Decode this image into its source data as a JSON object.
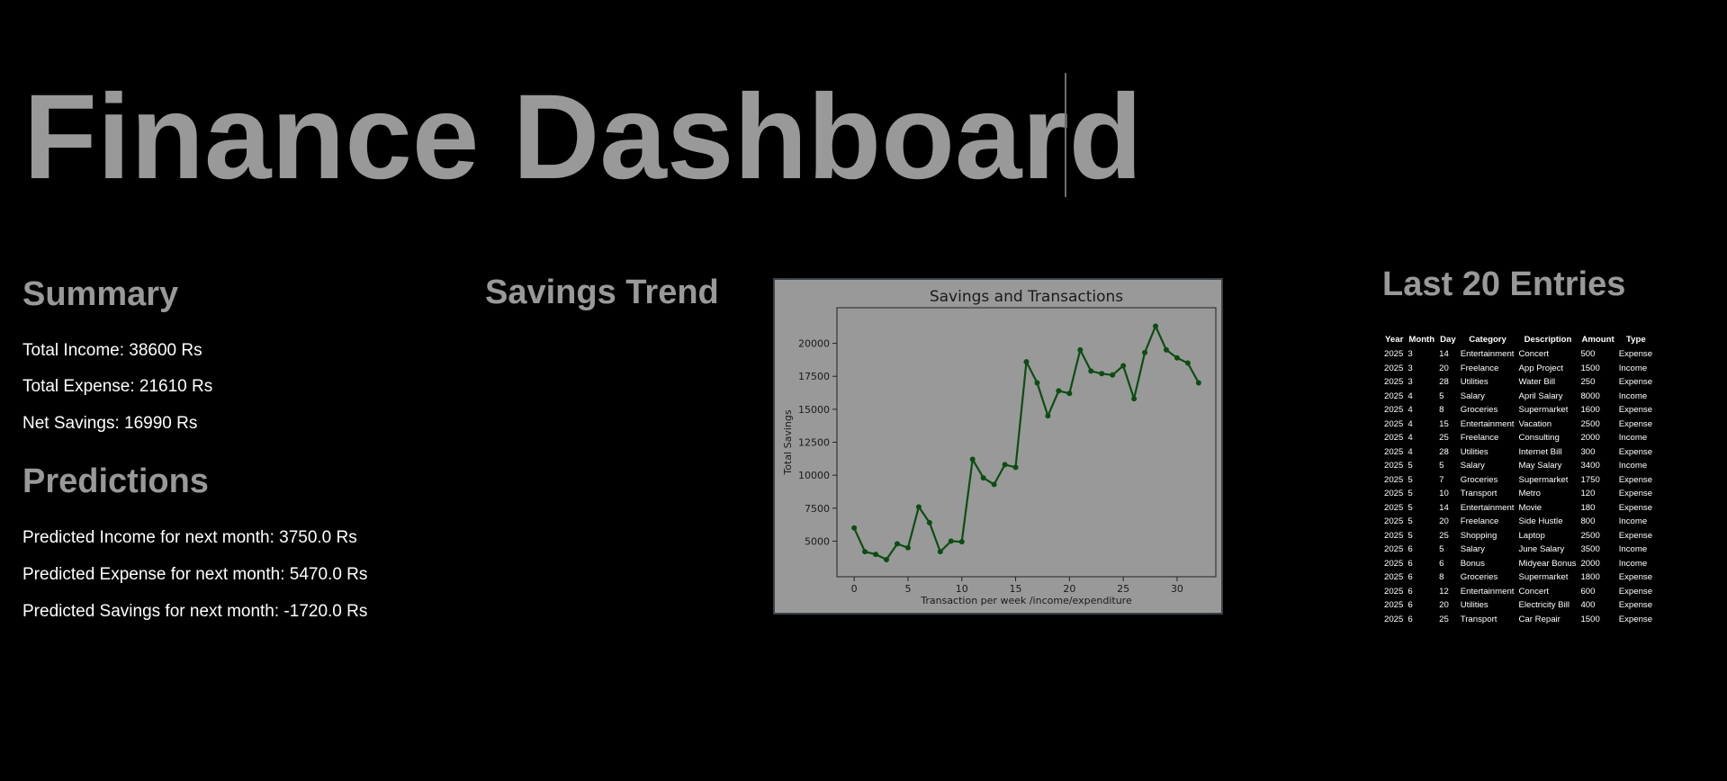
{
  "page": {
    "title": "Finance Dashboard"
  },
  "summary": {
    "heading": "Summary",
    "total_income": "Total Income: 38600 Rs",
    "total_expense": "Total Expense: 21610 Rs",
    "net_savings": "Net Savings: 16990 Rs"
  },
  "predictions": {
    "heading": "Predictions",
    "income": "Predicted Income for next month: 3750.0 Rs",
    "expense": "Predicted Expense for next month: 5470.0 Rs",
    "savings": "Predicted Savings for next month: -1720.0 Rs"
  },
  "savings_trend": {
    "heading": "Savings Trend"
  },
  "colors": {
    "page_background": "#000000",
    "heading_text": "#999999",
    "body_text": "#ffffff",
    "chart_background": "#999999",
    "line_color": "#0c4d12"
  },
  "chart_data": {
    "type": "line",
    "title": "Savings and Transactions",
    "xlabel": "Transaction per week /income/expenditure",
    "ylabel": "Total Savings",
    "xlim": [
      -1.6,
      33.6
    ],
    "ylim": [
      2300,
      22700
    ],
    "xticks": [
      0,
      5,
      10,
      15,
      20,
      25,
      30
    ],
    "yticks": [
      5000,
      7500,
      10000,
      12500,
      15000,
      17500,
      20000
    ],
    "grid": false,
    "markers": true,
    "series": [
      {
        "x": [
          0,
          1,
          2,
          3,
          4,
          5,
          6,
          7,
          8,
          9,
          10,
          11,
          12,
          13,
          14,
          15,
          16,
          17,
          18,
          19,
          20,
          21,
          22,
          23,
          24,
          25,
          26,
          27,
          28,
          29,
          30,
          31,
          32
        ],
        "values": [
          6000,
          4200,
          4000,
          3600,
          4800,
          4500,
          7600,
          6400,
          4200,
          5000,
          4950,
          11200,
          9800,
          9300,
          10800,
          10600,
          18600,
          17000,
          14500,
          16400,
          16200,
          19500,
          17900,
          17700,
          17600,
          18300,
          15800,
          19300,
          21300,
          19500,
          18900,
          18500,
          17000
        ]
      }
    ]
  },
  "entries": {
    "heading": "Last 20 Entries",
    "columns": [
      "Year",
      "Month",
      "Day",
      "Category",
      "Description",
      "Amount",
      "Type"
    ],
    "rows": [
      [
        "2025",
        "3",
        "14",
        "Entertainment",
        "Concert",
        "500",
        "Expense"
      ],
      [
        "2025",
        "3",
        "20",
        "Freelance",
        "App Project",
        "1500",
        "Income"
      ],
      [
        "2025",
        "3",
        "28",
        "Utilities",
        "Water Bill",
        "250",
        "Expense"
      ],
      [
        "2025",
        "4",
        "5",
        "Salary",
        "April Salary",
        "8000",
        "Income"
      ],
      [
        "2025",
        "4",
        "8",
        "Groceries",
        "Supermarket",
        "1600",
        "Expense"
      ],
      [
        "2025",
        "4",
        "15",
        "Entertainment",
        "Vacation",
        "2500",
        "Expense"
      ],
      [
        "2025",
        "4",
        "25",
        "Freelance",
        "Consulting",
        "2000",
        "Income"
      ],
      [
        "2025",
        "4",
        "28",
        "Utilities",
        "Internet Bill",
        "300",
        "Expense"
      ],
      [
        "2025",
        "5",
        "5",
        "Salary",
        "May Salary",
        "3400",
        "Income"
      ],
      [
        "2025",
        "5",
        "7",
        "Groceries",
        "Supermarket",
        "1750",
        "Expense"
      ],
      [
        "2025",
        "5",
        "10",
        "Transport",
        "Metro",
        "120",
        "Expense"
      ],
      [
        "2025",
        "5",
        "14",
        "Entertainment",
        "Movie",
        "180",
        "Expense"
      ],
      [
        "2025",
        "5",
        "20",
        "Freelance",
        "Side Hustle",
        "800",
        "Income"
      ],
      [
        "2025",
        "5",
        "25",
        "Shopping",
        "Laptop",
        "2500",
        "Expense"
      ],
      [
        "2025",
        "6",
        "5",
        "Salary",
        "June Salary",
        "3500",
        "Income"
      ],
      [
        "2025",
        "6",
        "6",
        "Bonus",
        "Midyear Bonus",
        "2000",
        "Income"
      ],
      [
        "2025",
        "6",
        "8",
        "Groceries",
        "Supermarket",
        "1800",
        "Expense"
      ],
      [
        "2025",
        "6",
        "12",
        "Entertainment",
        "Concert",
        "600",
        "Expense"
      ],
      [
        "2025",
        "6",
        "20",
        "Utilities",
        "Electricity Bill",
        "400",
        "Expense"
      ],
      [
        "2025",
        "6",
        "25",
        "Transport",
        "Car Repair",
        "1500",
        "Expense"
      ]
    ]
  }
}
